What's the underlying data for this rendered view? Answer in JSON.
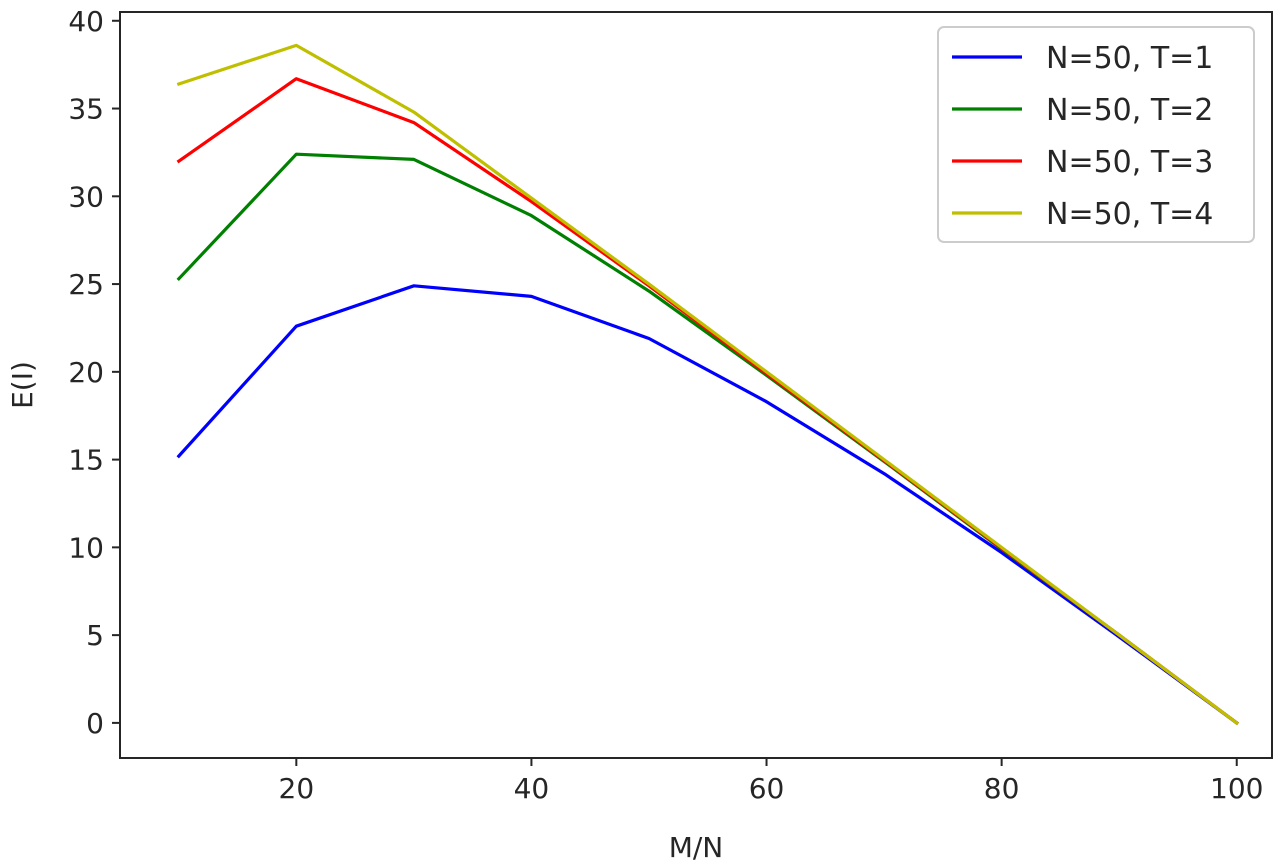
{
  "chart_data": {
    "type": "line",
    "xlabel": "M/N",
    "ylabel": "E(I)",
    "xlim": [
      5,
      103
    ],
    "ylim": [
      -2,
      40.5
    ],
    "xticks": [
      20,
      40,
      60,
      80,
      100
    ],
    "yticks": [
      0,
      5,
      10,
      15,
      20,
      25,
      30,
      35,
      40
    ],
    "grid": false,
    "legend_position": "top-right",
    "x": [
      10,
      20,
      30,
      40,
      50,
      60,
      70,
      80,
      90,
      100
    ],
    "series": [
      {
        "name": "N=50, T=1",
        "color": "#0000ff",
        "values": [
          15.2,
          22.6,
          24.9,
          24.3,
          21.9,
          18.3,
          14.2,
          9.7,
          4.9,
          0.0
        ]
      },
      {
        "name": "N=50, T=2",
        "color": "#008000",
        "values": [
          25.3,
          32.4,
          32.1,
          28.9,
          24.6,
          19.8,
          14.9,
          9.9,
          5.0,
          0.0
        ]
      },
      {
        "name": "N=50, T=3",
        "color": "#ff0000",
        "values": [
          32.0,
          36.7,
          34.2,
          29.7,
          24.9,
          19.9,
          14.95,
          9.95,
          5.0,
          0.0
        ]
      },
      {
        "name": "N=50, T=4",
        "color": "#bfbf00",
        "values": [
          36.4,
          38.6,
          34.8,
          29.9,
          25.0,
          20.0,
          15.0,
          10.0,
          5.0,
          0.0
        ]
      }
    ]
  }
}
